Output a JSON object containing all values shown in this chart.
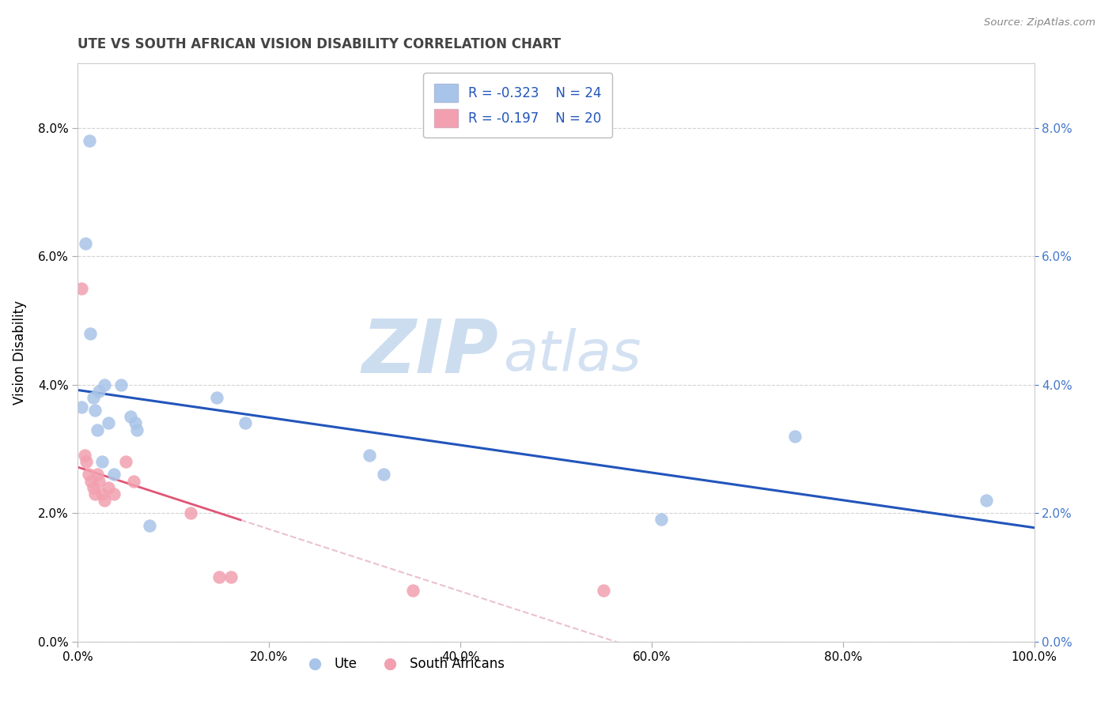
{
  "title": "UTE VS SOUTH AFRICAN VISION DISABILITY CORRELATION CHART",
  "source": "Source: ZipAtlas.com",
  "ylabel": "Vision Disability",
  "ute_R": -0.323,
  "ute_N": 24,
  "sa_R": -0.197,
  "sa_N": 20,
  "ute_scatter_color": "#A8C4E8",
  "sa_scatter_color": "#F2A0B0",
  "ute_line_color": "#2255BB",
  "sa_line_color": "#E05575",
  "sa_dash_color": "#E8BBCC",
  "bg_color": "#FFFFFF",
  "grid_color": "#C8C8C8",
  "title_color": "#444444",
  "source_color": "#888888",
  "legend_text_color": "#2255BB",
  "xlim": [
    0.0,
    1.0
  ],
  "ylim": [
    0.0,
    0.09
  ],
  "xtick_vals": [
    0.0,
    0.2,
    0.4,
    0.6,
    0.8,
    1.0
  ],
  "ytick_vals": [
    0.0,
    0.02,
    0.04,
    0.06,
    0.08
  ],
  "ute_x": [
    0.004,
    0.008,
    0.012,
    0.013,
    0.016,
    0.018,
    0.02,
    0.022,
    0.025,
    0.028,
    0.032,
    0.038,
    0.045,
    0.055,
    0.06,
    0.062,
    0.075,
    0.145,
    0.175,
    0.305,
    0.32,
    0.61,
    0.75,
    0.95
  ],
  "ute_y": [
    0.0365,
    0.062,
    0.078,
    0.048,
    0.038,
    0.036,
    0.033,
    0.039,
    0.028,
    0.04,
    0.034,
    0.026,
    0.04,
    0.035,
    0.034,
    0.033,
    0.018,
    0.038,
    0.034,
    0.029,
    0.026,
    0.019,
    0.032,
    0.022
  ],
  "sa_x": [
    0.004,
    0.007,
    0.009,
    0.011,
    0.014,
    0.016,
    0.018,
    0.02,
    0.022,
    0.025,
    0.028,
    0.032,
    0.038,
    0.05,
    0.058,
    0.118,
    0.148,
    0.16,
    0.35,
    0.55
  ],
  "sa_y": [
    0.055,
    0.029,
    0.028,
    0.026,
    0.025,
    0.024,
    0.023,
    0.026,
    0.025,
    0.023,
    0.022,
    0.024,
    0.023,
    0.028,
    0.025,
    0.02,
    0.01,
    0.01,
    0.008,
    0.008
  ]
}
